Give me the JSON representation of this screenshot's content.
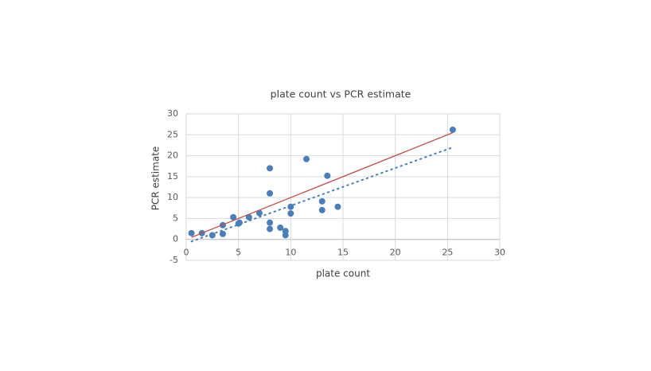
{
  "chart_data": {
    "type": "scatter",
    "title": "plate count vs PCR estimate",
    "xlabel": "plate count",
    "ylabel": "PCR estimate",
    "xlim": [
      0,
      30
    ],
    "xticks": [
      0,
      5,
      10,
      15,
      20,
      25,
      30
    ],
    "ylim": [
      -5,
      30
    ],
    "yticks": [
      -5,
      0,
      5,
      10,
      15,
      20,
      25,
      30
    ],
    "grid": true,
    "series": [
      {
        "color": "#4a7ebb",
        "x": [
          0.5,
          1.5,
          2.5,
          3.5,
          3.5,
          4.5,
          5,
          5.1,
          6,
          7,
          8,
          8,
          8,
          8,
          9,
          9.5,
          9.5,
          10,
          10,
          11.5,
          13,
          13,
          13.5,
          14.5,
          25.5
        ],
        "values": [
          1.5,
          1.5,
          1,
          1.3,
          3.4,
          5.3,
          3.8,
          4,
          5.3,
          6.3,
          17,
          11,
          4,
          2.5,
          2.8,
          2,
          1,
          7.8,
          6.2,
          19.2,
          9.1,
          7,
          15.2,
          7.8,
          26.2
        ]
      }
    ],
    "lines": [
      {
        "color": "#c0504d",
        "dash": false,
        "x": [
          0.5,
          25.5
        ],
        "values": [
          0.5,
          25.5
        ]
      },
      {
        "color": "#4a7ebb",
        "dash": true,
        "x": [
          0.5,
          25.5
        ],
        "values": [
          -0.5,
          22
        ]
      }
    ]
  }
}
